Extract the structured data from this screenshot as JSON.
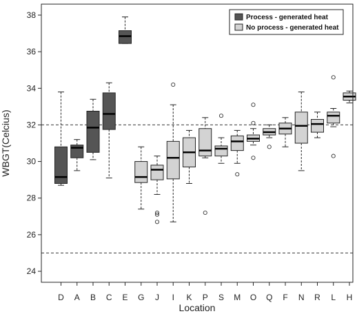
{
  "colors": {
    "process": "#555555",
    "no_process": "#d3d3d3",
    "stroke": "#222222"
  },
  "chart_data": {
    "type": "box",
    "xlabel": "Location",
    "ylabel": "WBGT(Celcius)",
    "ylim": [
      23.4,
      38.6
    ],
    "yticks": [
      24,
      26,
      28,
      30,
      32,
      34,
      36,
      38
    ],
    "reference_lines": [
      32,
      25
    ],
    "grid": false,
    "legend_position": "top-right",
    "legend": [
      {
        "label": "Process - generated heat",
        "group": "process"
      },
      {
        "label": "No process - generated heat",
        "group": "no_process"
      }
    ],
    "categories": [
      "D",
      "A",
      "B",
      "C",
      "E",
      "G",
      "J",
      "I",
      "K",
      "P",
      "S",
      "M",
      "O",
      "Q",
      "F",
      "N",
      "R",
      "L",
      "H"
    ],
    "boxes": [
      {
        "label": "D",
        "group": "process",
        "whisker_low": 28.7,
        "q1": 28.8,
        "median": 29.15,
        "q3": 30.8,
        "whisker_high": 33.8,
        "outliers": []
      },
      {
        "label": "A",
        "group": "process",
        "whisker_low": 29.5,
        "q1": 30.2,
        "median": 30.75,
        "q3": 30.9,
        "whisker_high": 31.2,
        "outliers": []
      },
      {
        "label": "B",
        "group": "process",
        "whisker_low": 30.1,
        "q1": 30.5,
        "median": 31.85,
        "q3": 32.75,
        "whisker_high": 33.4,
        "outliers": []
      },
      {
        "label": "C",
        "group": "process",
        "whisker_low": 29.1,
        "q1": 31.75,
        "median": 32.6,
        "q3": 33.75,
        "whisker_high": 34.3,
        "outliers": []
      },
      {
        "label": "E",
        "group": "process",
        "whisker_low": 36.45,
        "q1": 36.45,
        "median": 36.85,
        "q3": 37.15,
        "whisker_high": 37.9,
        "outliers": []
      },
      {
        "label": "G",
        "group": "no_process",
        "whisker_low": 27.4,
        "q1": 28.85,
        "median": 29.15,
        "q3": 30.0,
        "whisker_high": 30.8,
        "outliers": []
      },
      {
        "label": "J",
        "group": "no_process",
        "whisker_low": 28.2,
        "q1": 29.0,
        "median": 29.55,
        "q3": 29.8,
        "whisker_high": 30.3,
        "outliers": [
          27.2,
          27.1,
          26.7
        ]
      },
      {
        "label": "I",
        "group": "no_process",
        "whisker_low": 26.7,
        "q1": 29.05,
        "median": 30.2,
        "q3": 31.1,
        "whisker_high": 33.1,
        "outliers": [
          34.2
        ]
      },
      {
        "label": "K",
        "group": "no_process",
        "whisker_low": 28.8,
        "q1": 29.7,
        "median": 30.5,
        "q3": 31.3,
        "whisker_high": 31.7,
        "outliers": []
      },
      {
        "label": "P",
        "group": "no_process",
        "whisker_low": 30.2,
        "q1": 30.3,
        "median": 30.6,
        "q3": 31.8,
        "whisker_high": 32.4,
        "outliers": [
          27.2
        ]
      },
      {
        "label": "S",
        "group": "no_process",
        "whisker_low": 29.9,
        "q1": 30.3,
        "median": 30.7,
        "q3": 30.85,
        "whisker_high": 31.3,
        "outliers": [
          32.5
        ]
      },
      {
        "label": "M",
        "group": "no_process",
        "whisker_low": 29.9,
        "q1": 30.6,
        "median": 31.1,
        "q3": 31.4,
        "whisker_high": 31.7,
        "outliers": [
          29.3
        ]
      },
      {
        "label": "O",
        "group": "no_process",
        "whisker_low": 30.9,
        "q1": 31.1,
        "median": 31.25,
        "q3": 31.45,
        "whisker_high": 31.8,
        "outliers": [
          33.1,
          32.1,
          30.2
        ]
      },
      {
        "label": "Q",
        "group": "no_process",
        "whisker_low": 31.3,
        "q1": 31.45,
        "median": 31.6,
        "q3": 31.8,
        "whisker_high": 32.0,
        "outliers": [
          30.8
        ]
      },
      {
        "label": "F",
        "group": "no_process",
        "whisker_low": 30.8,
        "q1": 31.5,
        "median": 31.8,
        "q3": 32.1,
        "whisker_high": 32.4,
        "outliers": []
      },
      {
        "label": "N",
        "group": "no_process",
        "whisker_low": 29.5,
        "q1": 31.0,
        "median": 31.95,
        "q3": 32.7,
        "whisker_high": 33.8,
        "outliers": []
      },
      {
        "label": "R",
        "group": "no_process",
        "whisker_low": 31.3,
        "q1": 31.6,
        "median": 32.05,
        "q3": 32.3,
        "whisker_high": 32.7,
        "outliers": []
      },
      {
        "label": "L",
        "group": "no_process",
        "whisker_low": 31.9,
        "q1": 32.1,
        "median": 32.5,
        "q3": 32.7,
        "whisker_high": 32.9,
        "outliers": [
          34.6,
          30.3
        ]
      },
      {
        "label": "H",
        "group": "no_process",
        "whisker_low": 33.2,
        "q1": 33.35,
        "median": 33.55,
        "q3": 33.75,
        "whisker_high": 33.85,
        "outliers": []
      }
    ]
  }
}
